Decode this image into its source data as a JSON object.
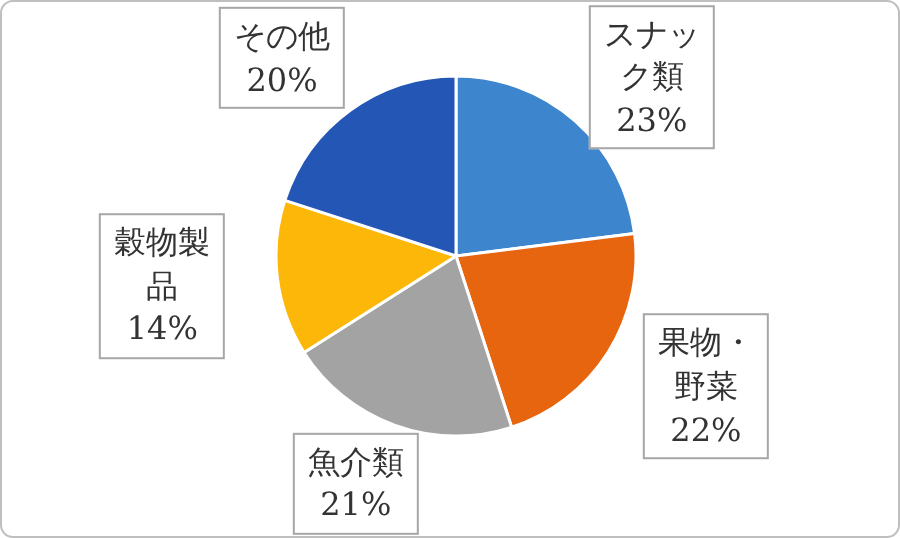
{
  "chart_data": {
    "type": "pie",
    "categories": [
      "スナック類",
      "果物・野菜",
      "魚介類",
      "穀物製品",
      "その他"
    ],
    "values": [
      23,
      22,
      21,
      14,
      20
    ],
    "colors": [
      "#3d85cd",
      "#e8650f",
      "#a3a3a3",
      "#fdb709",
      "#2356b5"
    ],
    "value_labels": [
      "23%",
      "22%",
      "21%",
      "14%",
      "20%"
    ]
  }
}
